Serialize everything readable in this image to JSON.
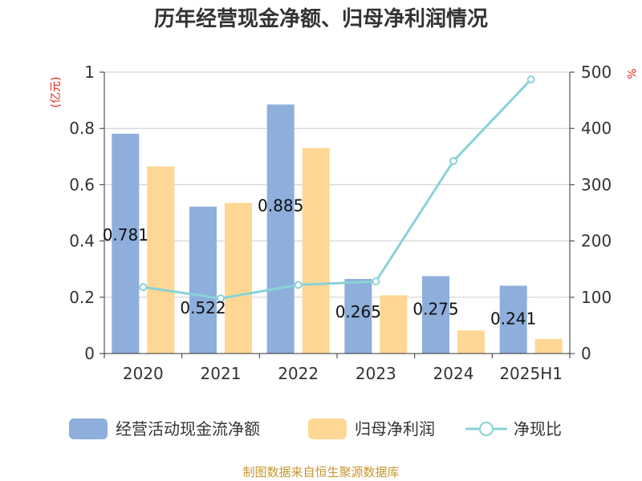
{
  "title": "历年经营现金净额、归母净利润情况",
  "source": "制图数据来自恒生聚源数据库",
  "colors": {
    "cash_flow": "#8eaedc",
    "net_profit": "#fed794",
    "ratio": "#88d3d8",
    "grid": "#cccccc",
    "axis": "#333333",
    "unit": "#e8261d",
    "source": "#c8962e"
  },
  "chart_data": {
    "type": "bar",
    "title": "历年经营现金净额、归母净利润情况",
    "categories": [
      "2020",
      "2021",
      "2022",
      "2023",
      "2024",
      "2025H1"
    ],
    "left_axis": {
      "unit": "(亿元)",
      "ylim": [
        0,
        1
      ],
      "ticks": [
        "0",
        "0.2",
        "0.4",
        "0.6",
        "0.8",
        "1"
      ]
    },
    "right_axis": {
      "unit": "%",
      "ylim": [
        0,
        500
      ],
      "ticks": [
        "0",
        "100",
        "200",
        "300",
        "400",
        "500"
      ]
    },
    "grid": true,
    "legend_position": "bottom",
    "series": [
      {
        "name": "经营活动现金流净额",
        "type": "bar",
        "axis": "left",
        "values": [
          0.781,
          0.522,
          0.885,
          0.265,
          0.275,
          0.241
        ],
        "labels": [
          "0.781",
          "0.522",
          "0.885",
          "0.265",
          "0.275",
          "0.241"
        ]
      },
      {
        "name": "归母净利润",
        "type": "bar",
        "axis": "left",
        "values": [
          0.665,
          0.535,
          0.73,
          0.207,
          0.082,
          0.052
        ]
      },
      {
        "name": "净现比",
        "type": "line",
        "axis": "right",
        "values": [
          118,
          98,
          122,
          128,
          342,
          487
        ]
      }
    ]
  }
}
